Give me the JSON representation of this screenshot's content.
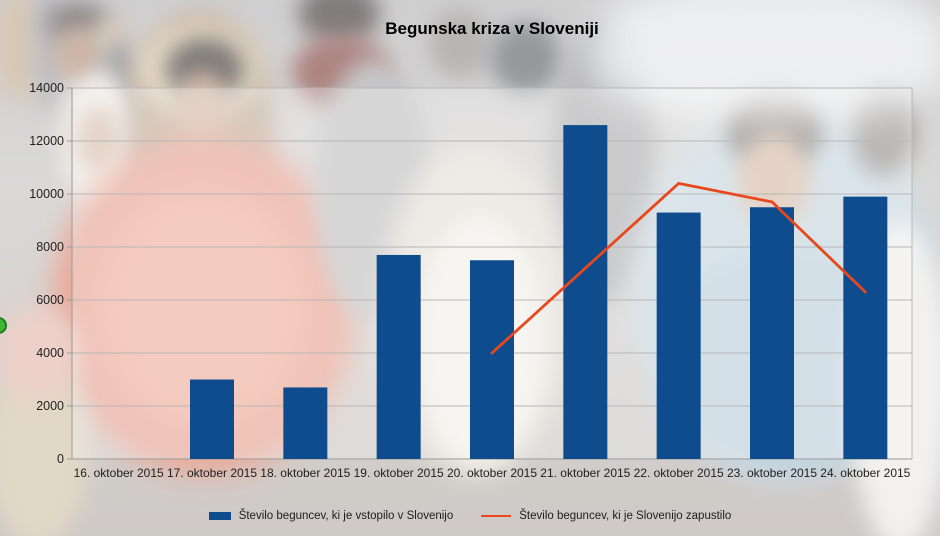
{
  "colors": {
    "bar": "#0e4c8e",
    "line": "#e8481c",
    "grid": "#b7b7b7",
    "axis": "#999999",
    "label_text": "#1f1f1f",
    "title_text": "#000000",
    "green_dot": "#3fb53a",
    "green_dot_border": "#1e7d1e"
  },
  "chart_data": {
    "type": "bar",
    "combo_note": "bar series with line overlay",
    "title": "Begunska kriza v Sloveniji",
    "categories": [
      "16. oktober 2015",
      "17. oktober 2015",
      "18. oktober 2015",
      "19. oktober 2015",
      "20. oktober 2015",
      "21. oktober 2015",
      "22. oktober 2015",
      "23. oktober 2015",
      "24. oktober 2015"
    ],
    "series": [
      {
        "name": "Število beguncev, ki je vstopilo v Slovenijo",
        "type": "bar",
        "color": "#0e4c8e",
        "values": [
          null,
          3000,
          2700,
          7700,
          7500,
          12600,
          9300,
          9500,
          9900
        ]
      },
      {
        "name": "Število beguncev, ki je Slovenijo zapustilo",
        "type": "line",
        "color": "#e8481c",
        "values": [
          null,
          null,
          null,
          null,
          4000,
          7200,
          10400,
          9700,
          6300
        ]
      }
    ],
    "ylim": [
      0,
      14000
    ],
    "ytick_step": 2000,
    "grid": "horizontal",
    "legend_position": "bottom"
  }
}
